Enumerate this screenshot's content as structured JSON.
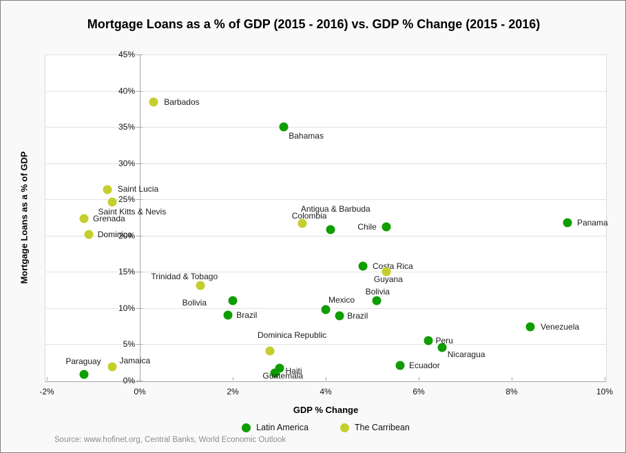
{
  "title": "Mortgage Loans as a % of GDP (2015 - 2016) vs. GDP % Change (2015 - 2016)",
  "source_note": "Source: www.hofinet.org,  Central Banks, World Economic Outlook",
  "colors": {
    "latin_america": "#0f9d00",
    "caribbean": "#c4cf2d",
    "grid": "#e2e2e2",
    "axis": "#a6a6a6",
    "label_text": "#1a1a1a",
    "source_text": "#8c8c8c"
  },
  "chart_data": {
    "type": "scatter",
    "title": "Mortgage Loans as a % of GDP (2015 - 2016) vs. GDP % Change (2015 - 2016)",
    "xlabel": "GDP % Change",
    "ylabel": "Mortgage Loans as a  % of GDP",
    "xlim": [
      -2,
      10
    ],
    "ylim": [
      0,
      45
    ],
    "x_ticks": [
      -2,
      0,
      2,
      4,
      6,
      8,
      10
    ],
    "y_ticks": [
      0,
      5,
      10,
      15,
      20,
      25,
      30,
      35,
      40,
      45
    ],
    "tick_suffix": "%",
    "grid": "horizontal",
    "legend_position": "bottom-center",
    "series": [
      {
        "name": "Latin America",
        "color_key": "latin_america",
        "points": [
          {
            "label": "Bahamas",
            "x": 3.1,
            "y": 35.0,
            "ldx": 7,
            "ldy": 13,
            "anchor": "start"
          },
          {
            "label": "Colombia",
            "x": 4.1,
            "y": 20.8,
            "ldx": -56,
            "ldy": -20,
            "anchor": "start"
          },
          {
            "label": "Chile",
            "x": 5.3,
            "y": 21.2,
            "ldx": -14,
            "ldy": 0,
            "anchor": "end"
          },
          {
            "label": "Panama",
            "x": 9.2,
            "y": 21.8,
            "ldx": 14,
            "ldy": 0,
            "anchor": "start"
          },
          {
            "label": "Costa Rica",
            "x": 4.8,
            "y": 15.8,
            "ldx": 14,
            "ldy": 0,
            "anchor": "start"
          },
          {
            "label": "Bolivia",
            "x": 2.0,
            "y": 11.0,
            "ldx": -38,
            "ldy": 3,
            "anchor": "end"
          },
          {
            "label": "Brazil",
            "x": 1.9,
            "y": 9.0,
            "ldx": 12,
            "ldy": 0,
            "anchor": "start"
          },
          {
            "label": "Mexico",
            "x": 4.0,
            "y": 9.8,
            "ldx": 4,
            "ldy": -14,
            "anchor": "start"
          },
          {
            "label": "Brazil",
            "x": 4.3,
            "y": 8.9,
            "ldx": 11,
            "ldy": 0,
            "anchor": "start"
          },
          {
            "label": "Bolivia",
            "x": 5.1,
            "y": 11.0,
            "ldx": 1,
            "ldy": -13,
            "anchor": "mid"
          },
          {
            "label": "Venezuela",
            "x": 8.4,
            "y": 7.4,
            "ldx": 15,
            "ldy": 0,
            "anchor": "start"
          },
          {
            "label": "Peru",
            "x": 6.2,
            "y": 5.5,
            "ldx": 11,
            "ldy": 0,
            "anchor": "start"
          },
          {
            "label": "Nicaragua",
            "x": 6.5,
            "y": 4.6,
            "ldx": 8,
            "ldy": 10,
            "anchor": "start"
          },
          {
            "label": "Ecuador",
            "x": 5.6,
            "y": 2.1,
            "ldx": 13,
            "ldy": 0,
            "anchor": "start"
          },
          {
            "label": "Haiti",
            "x": 3.0,
            "y": 1.7,
            "ldx": 9,
            "ldy": 4,
            "anchor": "start"
          },
          {
            "label": "Guatemala",
            "x": 2.9,
            "y": 1.0,
            "ldx": 12,
            "ldy": 4,
            "anchor": "mid"
          },
          {
            "label": "Paraguay",
            "x": -1.2,
            "y": 0.9,
            "ldx": -1,
            "ldy": -19,
            "anchor": "mid"
          }
        ]
      },
      {
        "name": "The Carribean",
        "color_key": "caribbean",
        "points": [
          {
            "label": "Barbados",
            "x": 0.3,
            "y": 38.4,
            "ldx": 15,
            "ldy": 0,
            "anchor": "start"
          },
          {
            "label": "Saint Lucia",
            "x": -0.7,
            "y": 26.4,
            "ldx": 15,
            "ldy": -1,
            "anchor": "start"
          },
          {
            "label": "Saint Kitts & Nevis",
            "x": -0.6,
            "y": 24.6,
            "ldx": -20,
            "ldy": 14,
            "anchor": "start"
          },
          {
            "label": "Grenada",
            "x": -1.2,
            "y": 22.4,
            "ldx": 13,
            "ldy": 0,
            "anchor": "start"
          },
          {
            "label": "Dominica",
            "x": -1.1,
            "y": 20.2,
            "ldx": 13,
            "ldy": 0,
            "anchor": "start"
          },
          {
            "label": "Antigua & Barbuda",
            "x": 3.5,
            "y": 21.7,
            "ldx": 48,
            "ldy": -21,
            "anchor": "mid"
          },
          {
            "label": "Trinidad & Tobago",
            "x": 1.3,
            "y": 13.1,
            "ldx": -23,
            "ldy": -13,
            "anchor": "mid"
          },
          {
            "label": "Guyana",
            "x": 5.3,
            "y": 15.0,
            "ldx": 3,
            "ldy": 11,
            "anchor": "mid"
          },
          {
            "label": "Dominica Republic",
            "x": 2.8,
            "y": 4.1,
            "ldx": 32,
            "ldy": -23,
            "anchor": "mid"
          },
          {
            "label": "Jamaica",
            "x": -0.6,
            "y": 1.9,
            "ldx": 11,
            "ldy": -9,
            "anchor": "start"
          }
        ]
      }
    ]
  }
}
